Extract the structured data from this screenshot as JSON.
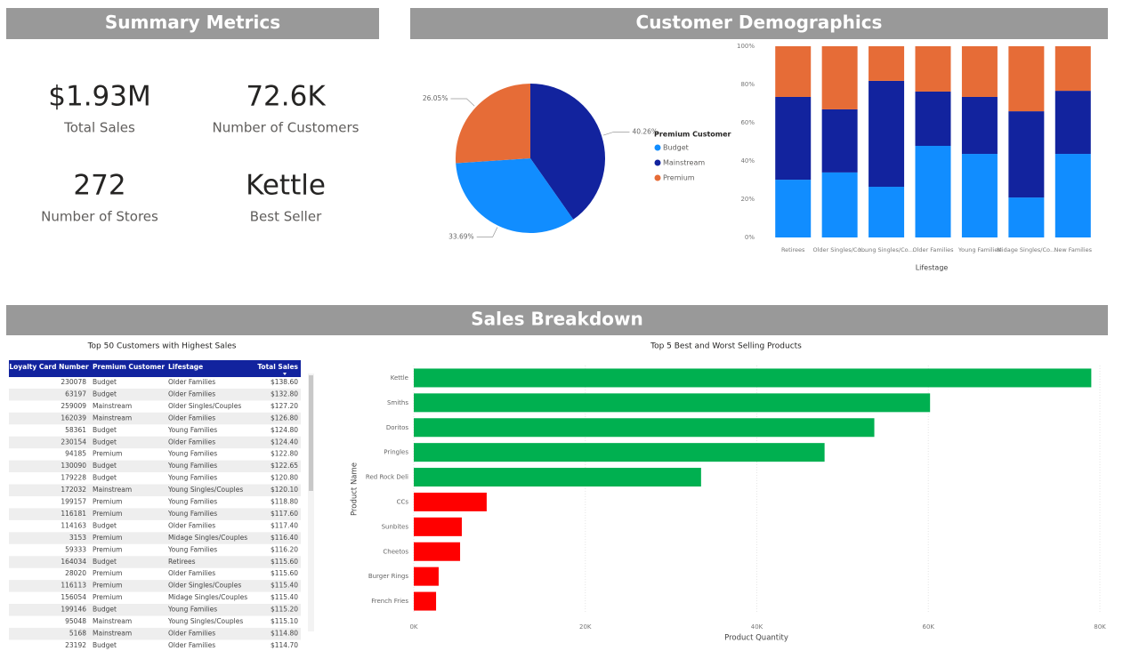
{
  "sections": [
    "Summary Metrics",
    "Customer Demographics",
    "Sales Breakdown"
  ],
  "metrics": [
    {
      "value": "$1.93M",
      "label": "Total Sales"
    },
    {
      "value": "72.6K",
      "label": "Number of Customers"
    },
    {
      "value": "272",
      "label": "Number of Stores"
    },
    {
      "value": "Kettle",
      "label": "Best Seller"
    }
  ],
  "table": {
    "title": "Top 50 Customers with Highest Sales",
    "columns": [
      "Loyalty Card Number",
      "Premium Customer",
      "Lifestage",
      "Total Sales"
    ],
    "rows": [
      [
        "230078",
        "Budget",
        "Older Families",
        "$138.60"
      ],
      [
        "63197",
        "Budget",
        "Older Families",
        "$132.80"
      ],
      [
        "259009",
        "Mainstream",
        "Older Singles/Couples",
        "$127.20"
      ],
      [
        "162039",
        "Mainstream",
        "Older Families",
        "$126.80"
      ],
      [
        "58361",
        "Budget",
        "Young Families",
        "$124.80"
      ],
      [
        "230154",
        "Budget",
        "Older Families",
        "$124.40"
      ],
      [
        "94185",
        "Premium",
        "Young Families",
        "$122.80"
      ],
      [
        "130090",
        "Budget",
        "Young Families",
        "$122.65"
      ],
      [
        "179228",
        "Budget",
        "Young Families",
        "$120.80"
      ],
      [
        "172032",
        "Mainstream",
        "Young Singles/Couples",
        "$120.10"
      ],
      [
        "199157",
        "Premium",
        "Young Families",
        "$118.80"
      ],
      [
        "116181",
        "Premium",
        "Young Families",
        "$117.60"
      ],
      [
        "114163",
        "Budget",
        "Older Families",
        "$117.40"
      ],
      [
        "3153",
        "Premium",
        "Midage Singles/Couples",
        "$116.40"
      ],
      [
        "59333",
        "Premium",
        "Young Families",
        "$116.20"
      ],
      [
        "164034",
        "Budget",
        "Retirees",
        "$115.60"
      ],
      [
        "28020",
        "Premium",
        "Older Families",
        "$115.60"
      ],
      [
        "116113",
        "Premium",
        "Older Singles/Couples",
        "$115.40"
      ],
      [
        "156054",
        "Premium",
        "Midage Singles/Couples",
        "$115.40"
      ],
      [
        "199146",
        "Budget",
        "Young Families",
        "$115.20"
      ],
      [
        "95048",
        "Mainstream",
        "Young Singles/Couples",
        "$115.10"
      ],
      [
        "5168",
        "Mainstream",
        "Older Families",
        "$114.80"
      ],
      [
        "23192",
        "Budget",
        "Older Families",
        "$114.70"
      ]
    ]
  },
  "chart_data": [
    {
      "type": "pie",
      "legend_title": "Premium Customer",
      "categories": [
        "Budget",
        "Mainstream",
        "Premium"
      ],
      "values": [
        33.69,
        40.26,
        26.05
      ],
      "value_labels": [
        "33.69%",
        "40.26%",
        "26.05%"
      ],
      "colors": [
        "#118dff",
        "#12239e",
        "#e66c37"
      ]
    },
    {
      "type": "stacked_bar",
      "xlabel": "Lifestage",
      "categories": [
        "Retirees",
        "Older Singles/Co…",
        "Young Singles/Co…",
        "Older Families",
        "Young Families",
        "Midage Singles/Co…",
        "New Families"
      ],
      "series": [
        {
          "color": "#118dff",
          "values": [
            30.2,
            34.0,
            26.5,
            47.9,
            43.7,
            20.9,
            43.7
          ]
        },
        {
          "color": "#12239e",
          "values": [
            43.3,
            33.0,
            55.4,
            28.4,
            29.8,
            45.1,
            33.0
          ]
        },
        {
          "color": "#e66c37",
          "values": [
            26.5,
            33.0,
            18.1,
            23.7,
            26.5,
            34.0,
            23.3
          ]
        }
      ],
      "ylim": [
        0,
        100
      ],
      "yticks": [
        {
          "value": 0,
          "label": "0%"
        },
        {
          "value": 20,
          "label": "20%"
        },
        {
          "value": 40,
          "label": "40%"
        },
        {
          "value": 60,
          "label": "60%"
        },
        {
          "value": 80,
          "label": "80%"
        },
        {
          "value": 100,
          "label": "100%"
        }
      ]
    },
    {
      "type": "hbar",
      "title": "Top 5 Best and Worst Selling Products",
      "xlabel": "Product Quantity",
      "ylabel": "Product Name",
      "categories": [
        "Kettle",
        "Smiths",
        "Doritos",
        "Pringles",
        "Red Rock Deli",
        "CCs",
        "Sunbites",
        "Cheetos",
        "Burger Rings",
        "French Fries"
      ],
      "values": [
        79000,
        60200,
        53700,
        47900,
        33500,
        8500,
        5600,
        5400,
        2900,
        2600
      ],
      "colors": [
        "#00b050",
        "#00b050",
        "#00b050",
        "#00b050",
        "#00b050",
        "#ff0000",
        "#ff0000",
        "#ff0000",
        "#ff0000",
        "#ff0000"
      ],
      "xlim": [
        0,
        80000
      ],
      "xticks": [
        {
          "value": 0,
          "label": "0K"
        },
        {
          "value": 20000,
          "label": "20K"
        },
        {
          "value": 40000,
          "label": "40K"
        },
        {
          "value": 60000,
          "label": "60K"
        },
        {
          "value": 80000,
          "label": "80K"
        }
      ]
    }
  ]
}
